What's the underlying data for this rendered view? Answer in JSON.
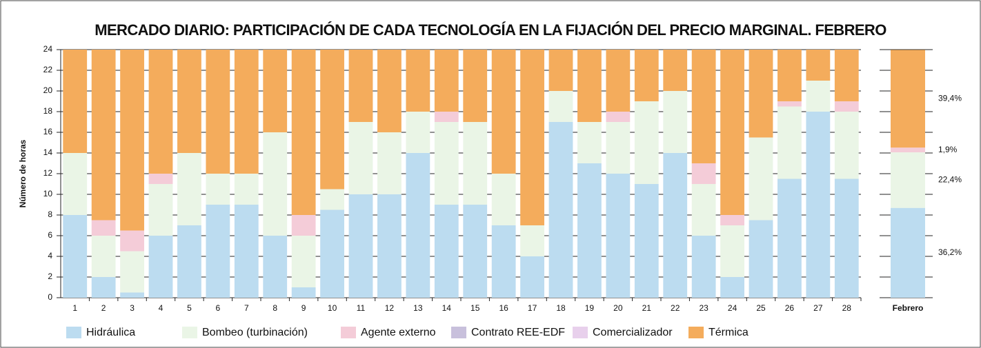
{
  "chart_data": {
    "type": "stacked_bar",
    "title": "MERCADO DIARIO: PARTICIPACIÓN DE CADA TECNOLOGÍA EN LA FIJACIÓN DEL PRECIO MARGINAL. FEBRERO",
    "y_label": "Número de horas",
    "categories": [
      "1",
      "2",
      "3",
      "4",
      "5",
      "6",
      "7",
      "8",
      "9",
      "10",
      "11",
      "12",
      "13",
      "14",
      "15",
      "16",
      "17",
      "18",
      "19",
      "20",
      "21",
      "22",
      "23",
      "24",
      "25",
      "26",
      "27",
      "28"
    ],
    "series": [
      {
        "name": "Hidráulica",
        "color": "#bcdcf0",
        "values": [
          8,
          2,
          0.5,
          6,
          7,
          9,
          9,
          6,
          1,
          8.5,
          10,
          10,
          14,
          9,
          9,
          7,
          4,
          17,
          13,
          12,
          11,
          14,
          6,
          2,
          7.5,
          11.5,
          18,
          11.5
        ]
      },
      {
        "name": "Bombeo (turbinación)",
        "color": "#eaf5e6",
        "values": [
          6,
          4,
          4,
          5,
          7,
          3,
          3,
          10,
          5,
          2,
          7,
          6,
          4,
          8,
          8,
          5,
          3,
          3,
          4,
          5,
          8,
          6,
          5,
          5,
          8,
          7,
          3,
          6.5
        ]
      },
      {
        "name": "Agente externo",
        "color": "#f4ccd8",
        "values": [
          0,
          1.5,
          2,
          1,
          0,
          0,
          0,
          0,
          2,
          0,
          0,
          0,
          0,
          1,
          0,
          0,
          0,
          0,
          0,
          1,
          0,
          0,
          2,
          1,
          0,
          0.5,
          0,
          1
        ]
      },
      {
        "name": "Contrato REE-EDF",
        "color": "#c8c0dc",
        "values": [
          0,
          0,
          0,
          0,
          0,
          0,
          0,
          0,
          0,
          0,
          0,
          0,
          0,
          0,
          0,
          0,
          0,
          0,
          0,
          0,
          0,
          0,
          0,
          0,
          0,
          0,
          0,
          0
        ]
      },
      {
        "name": "Comercializador",
        "color": "#e8d0ec",
        "values": [
          0,
          0,
          0,
          0,
          0,
          0,
          0,
          0,
          0,
          0,
          0,
          0,
          0,
          0,
          0,
          0,
          0,
          0,
          0,
          0,
          0,
          0,
          0,
          0,
          0,
          0,
          0,
          0
        ]
      },
      {
        "name": "Térmica",
        "color": "#f4ac5c",
        "values": [
          10,
          16.5,
          17.5,
          12,
          10,
          12,
          12,
          8,
          16,
          13.5,
          7,
          8,
          6,
          6,
          7,
          12,
          17,
          4,
          7,
          6,
          5,
          4,
          11,
          16,
          8.5,
          5,
          3,
          5
        ]
      }
    ],
    "ylim": [
      0,
      24
    ],
    "yticks": [
      0,
      2,
      4,
      6,
      8,
      10,
      12,
      14,
      16,
      18,
      20,
      22,
      24
    ],
    "grid": true,
    "summary": {
      "category": "Febrero",
      "values": [
        36.2,
        22.4,
        1.9,
        0,
        0,
        39.4
      ],
      "value_labels": [
        "36,2%",
        "22,4%",
        "1,9%",
        null,
        null,
        "39,4%"
      ],
      "ylim": [
        0,
        100
      ]
    }
  }
}
